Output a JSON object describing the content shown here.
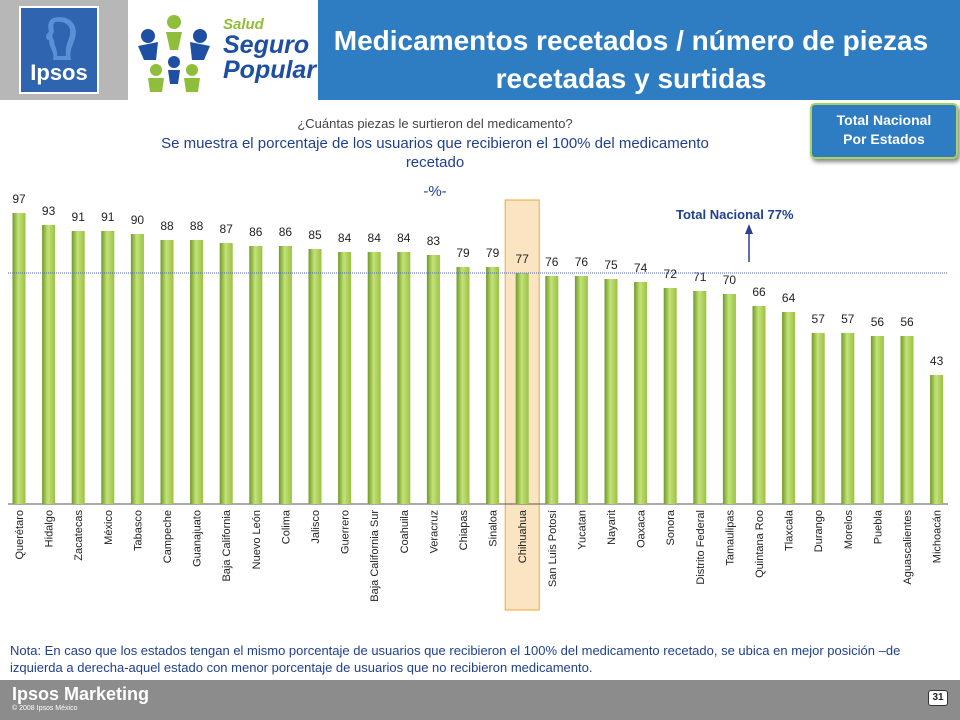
{
  "header": {
    "title": "Medicamentos recetados / número de piezas recetadas y surtidas",
    "ipsos_logo_text": "Ipsos",
    "logo": {
      "salud": "Salud",
      "seguro": "Seguro",
      "popular": "Popular"
    }
  },
  "badge": {
    "line1": "Total Nacional",
    "line2": "Por Estados"
  },
  "question": "¿Cuántas piezas le surtieron del medicamento?",
  "subtitle": "Se muestra el porcentaje de los usuarios que recibieron el 100% del medicamento recetado",
  "unit_label": "-%-",
  "colors": {
    "header": "#2e7cc1",
    "bar": "#9ac142",
    "bar_dark": "#6f9a25",
    "highlight": "#fbe4c2",
    "highlight_border": "#e8a93a",
    "reference_line": "#4f66b0",
    "arrow": "#2b3f8f"
  },
  "chart_data": {
    "type": "bar",
    "categories": [
      "Querétaro",
      "Hidalgo",
      "Zacatecas",
      "México",
      "Tabasco",
      "Campeche",
      "Guanajuato",
      "Baja California",
      "Nuevo León",
      "Colima",
      "Jalisco",
      "Guerrero",
      "Baja California Sur",
      "Coahuila",
      "Veracruz",
      "Chiapas",
      "Sinaloa",
      "Chihuahua",
      "San Luis Potosí",
      "Yucatan",
      "Nayarit",
      "Oaxaca",
      "Sonora",
      "Distrito Federal",
      "Tamaulipas",
      "Quintana Roo",
      "Tlaxcala",
      "Durango",
      "Morelos",
      "Puebla",
      "Aguascalientes",
      "Michoacán"
    ],
    "values": [
      97,
      93,
      91,
      91,
      90,
      88,
      88,
      87,
      86,
      86,
      85,
      84,
      84,
      84,
      83,
      79,
      79,
      77,
      76,
      76,
      75,
      74,
      72,
      71,
      70,
      66,
      64,
      57,
      57,
      56,
      56,
      43
    ],
    "value_labels": [
      "97",
      "93",
      "91",
      "91",
      "90",
      "88",
      "88",
      "87",
      "86",
      "86",
      "85",
      "84",
      "84",
      "84",
      "83",
      "79",
      "79",
      "77",
      "76",
      "76",
      "75",
      "74",
      "72",
      "71",
      "70",
      "66",
      "64",
      "57",
      "57",
      "56",
      "56",
      "43"
    ],
    "highlighted_category": "Chihuahua",
    "reference_value": 77,
    "reference_label": "Total Nacional 77%",
    "ylim": [
      0,
      100
    ]
  },
  "note": "Nota: En caso que los estados tengan el mismo porcentaje de usuarios que recibieron el 100% del medicamento recetado, se ubica en mejor posición –de izquierda a derecha-aquel estado con menor porcentaje de usuarios que no recibieron medicamento.",
  "footer": {
    "brand": "Ipsos Marketing",
    "copyright": "© 2008 Ipsos México",
    "page": "31"
  }
}
